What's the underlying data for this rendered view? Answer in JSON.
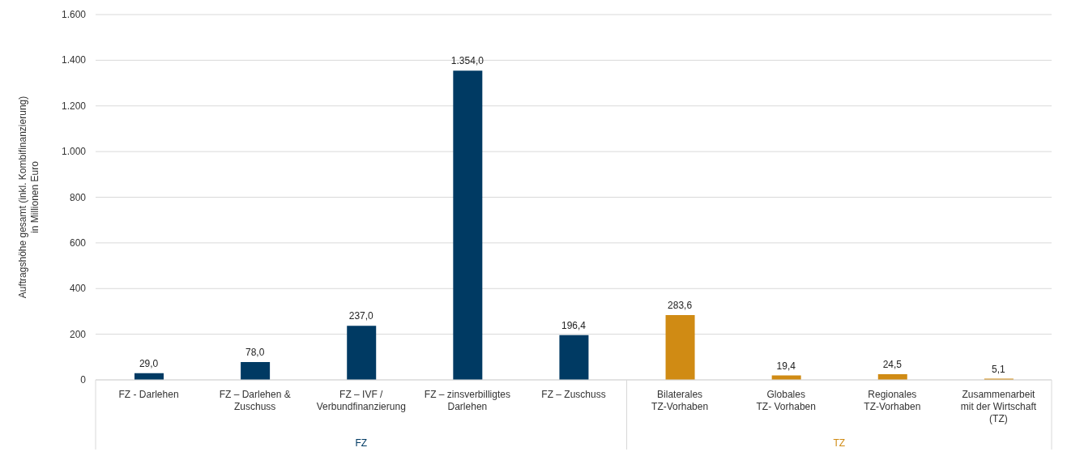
{
  "chart_data": {
    "type": "bar",
    "ylabel": "Auftragshöhe gesamt (inkl. Kombifinanzierung)\nin Millionen Euro",
    "categories": [
      "FZ - Darlehen",
      "FZ – Darlehen &\nZuschuss",
      "FZ – IVF /\nVerbundfinanzierung",
      "FZ – zinsverbilligtes\nDarlehen",
      "FZ – Zuschuss",
      "Bilaterales\nTZ-Vorhaben",
      "Globales\nTZ- Vorhaben",
      "Regionales\nTZ-Vorhaben",
      "Zusammenarbeit\nmit der Wirtschaft\n(TZ)"
    ],
    "series": [
      {
        "name": "FZ",
        "color": "#003a63",
        "values": [
          29.0,
          78.0,
          237.0,
          1354.0,
          196.4,
          null,
          null,
          null,
          null
        ],
        "value_labels": [
          "29,0",
          "78,0",
          "237,0",
          "1.354,0",
          "196,4",
          null,
          null,
          null,
          null
        ]
      },
      {
        "name": "TZ",
        "color": "#d08b14",
        "values": [
          null,
          null,
          null,
          null,
          null,
          283.6,
          19.4,
          24.5,
          5.1
        ],
        "value_labels": [
          null,
          null,
          null,
          null,
          null,
          "283,6",
          "19,4",
          "24,5",
          "5,1"
        ]
      }
    ],
    "ylim": [
      0,
      1600
    ],
    "yticks": [
      0,
      200,
      400,
      600,
      800,
      {
        "value": 1000,
        "label": "1.000"
      },
      {
        "value": 1200,
        "label": "1.200"
      },
      {
        "value": 1400,
        "label": "1.400"
      },
      {
        "value": 1600,
        "label": "1.600"
      }
    ],
    "grid": "y",
    "legend": false
  }
}
